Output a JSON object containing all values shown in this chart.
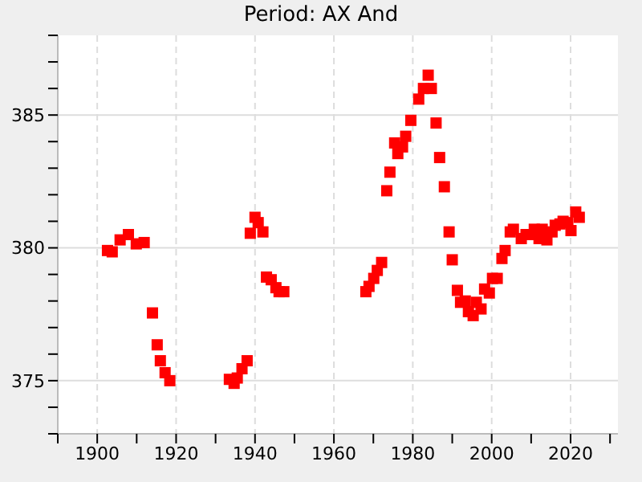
{
  "chart_data": {
    "type": "scatter",
    "title": "Period: AX And",
    "marker": "square",
    "grid": true,
    "xlim": [
      1890,
      2032
    ],
    "ylim": [
      373,
      388
    ],
    "xticks": [
      {
        "value": 1890,
        "label": null
      },
      1900,
      {
        "value": 1910,
        "label": null
      },
      1920,
      {
        "value": 1930,
        "label": null
      },
      1940,
      {
        "value": 1950,
        "label": null
      },
      1960,
      {
        "value": 1970,
        "label": null
      },
      1980,
      {
        "value": 1990,
        "label": null
      },
      2000,
      {
        "value": 2010,
        "label": null
      },
      2020,
      {
        "value": 2030,
        "label": null
      }
    ],
    "yticks": [
      {
        "value": 373,
        "label": null
      },
      {
        "value": 374,
        "label": null
      },
      375,
      {
        "value": 376,
        "label": null
      },
      {
        "value": 377,
        "label": null
      },
      {
        "value": 378,
        "label": null
      },
      {
        "value": 379,
        "label": null
      },
      380,
      {
        "value": 381,
        "label": null
      },
      {
        "value": 382,
        "label": null
      },
      {
        "value": 383,
        "label": null
      },
      {
        "value": 384,
        "label": null
      },
      385,
      {
        "value": 386,
        "label": null
      },
      {
        "value": 387,
        "label": null
      },
      {
        "value": 388,
        "label": null
      }
    ],
    "series": [
      {
        "color": "#ff0000",
        "x": [
          1902.6,
          1903.8,
          1905.8,
          1907.9,
          1909.9,
          1911.9,
          1914.0,
          1915.2,
          1916.0,
          1917.2,
          1918.4,
          1933.5,
          1934.7,
          1935.5,
          1936.7,
          1938.0,
          1938.8,
          1940.0,
          1940.8,
          1942.0,
          1942.9,
          1944.1,
          1945.3,
          1946.1,
          1947.3,
          1968.1,
          1968.9,
          1970.1,
          1971.0,
          1972.1,
          1973.4,
          1974.2,
          1975.4,
          1976.2,
          1977.4,
          1978.2,
          1979.5,
          1981.5,
          1982.7,
          1983.9,
          1984.7,
          1985.9,
          1986.8,
          1988.0,
          1989.2,
          1990.0,
          1991.3,
          1992.1,
          1993.3,
          1994.1,
          1995.3,
          1996.1,
          1997.3,
          1998.2,
          1999.4,
          2000.2,
          2001.4,
          2002.6,
          2003.4,
          2004.7,
          2005.5,
          2007.5,
          2008.7,
          2009.9,
          2010.8,
          2012.0,
          2012.8,
          2014.0,
          2015.3,
          2016.1,
          2017.3,
          2018.1,
          2019.3,
          2020.1,
          2021.3,
          2022.2
        ],
        "values": [
          379.9,
          379.85,
          380.3,
          380.5,
          380.15,
          380.2,
          377.55,
          376.35,
          375.75,
          375.3,
          375.0,
          375.05,
          374.9,
          375.1,
          375.45,
          375.75,
          380.55,
          381.15,
          380.95,
          380.6,
          378.9,
          378.8,
          378.5,
          378.35,
          378.35,
          378.35,
          378.55,
          378.85,
          379.15,
          379.45,
          382.15,
          382.85,
          383.95,
          383.55,
          383.8,
          384.2,
          384.8,
          385.6,
          386.0,
          386.5,
          386.0,
          384.7,
          383.4,
          382.3,
          380.6,
          379.55,
          378.4,
          377.95,
          378.0,
          377.6,
          377.45,
          377.95,
          377.7,
          378.45,
          378.3,
          378.85,
          378.85,
          379.6,
          379.9,
          380.6,
          380.7,
          380.35,
          380.5,
          380.5,
          380.7,
          380.35,
          380.7,
          380.3,
          380.6,
          380.85,
          380.9,
          381.0,
          380.95,
          380.65,
          381.35,
          381.15
        ]
      }
    ]
  }
}
